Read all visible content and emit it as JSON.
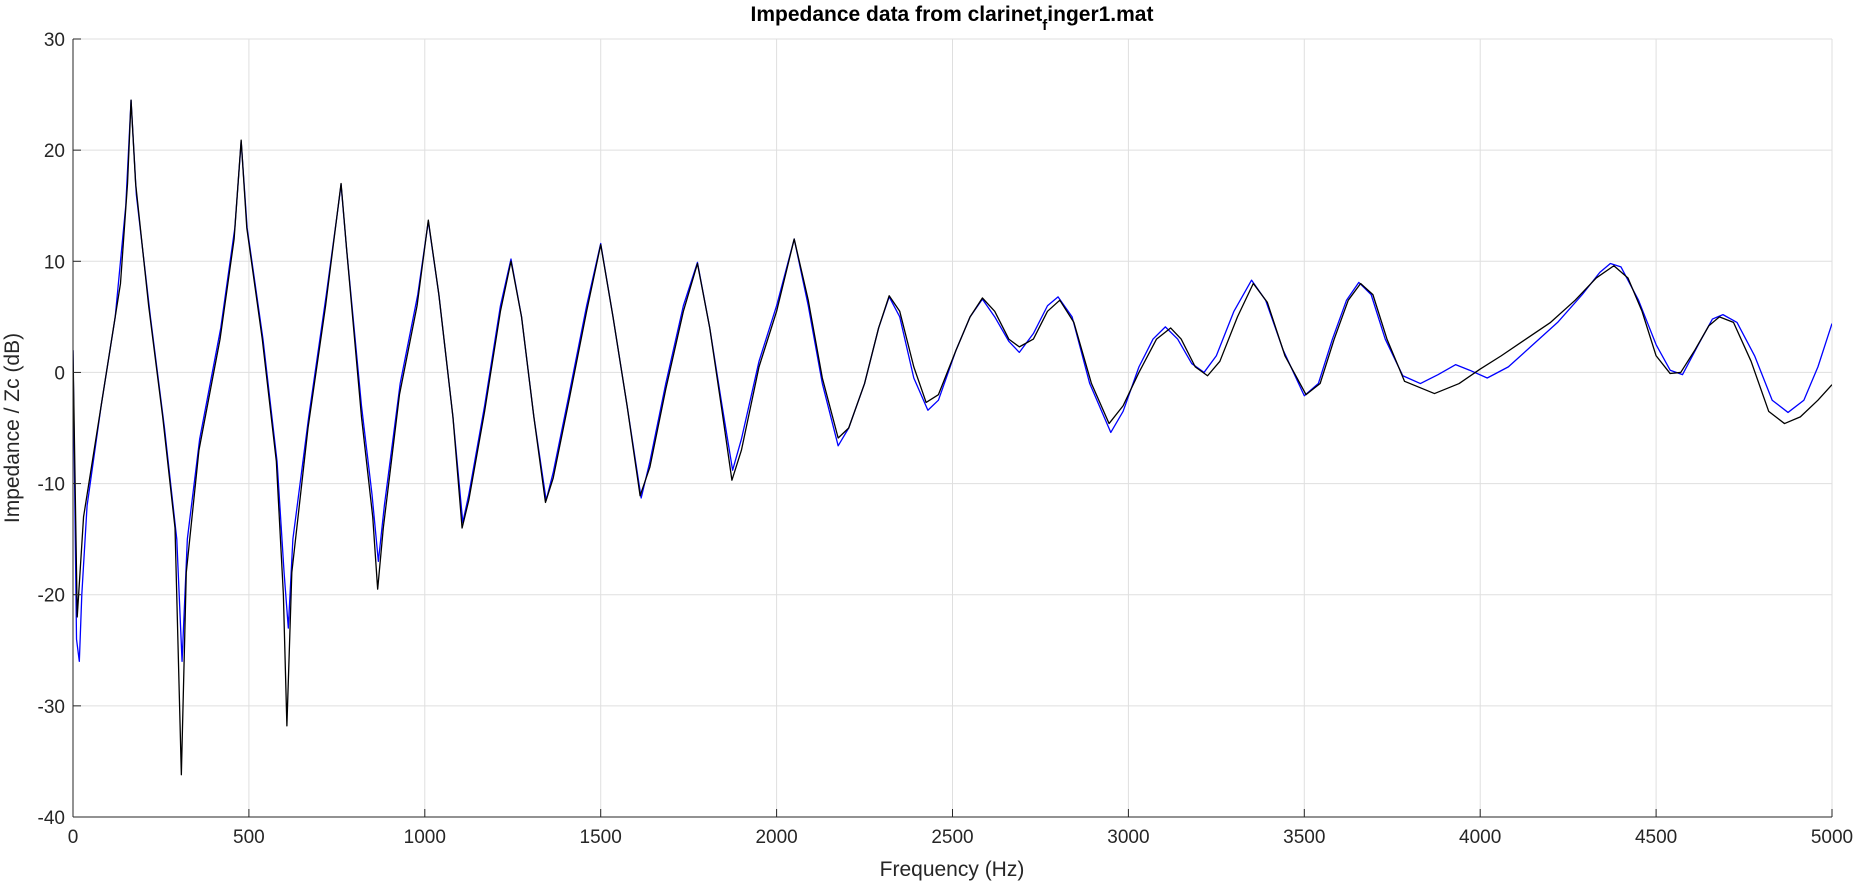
{
  "chart_data": {
    "type": "line",
    "title": "Impedance data from clarinet",
    "title_subscript": "f",
    "title_suffix": "inger1.mat",
    "xlabel": "Frequency (Hz)",
    "ylabel": "Impedance / Zc (dB)",
    "xlim": [
      0,
      5000
    ],
    "ylim": [
      -40,
      30
    ],
    "xticks": [
      0,
      500,
      1000,
      1500,
      2000,
      2500,
      3000,
      3500,
      4000,
      4500,
      5000
    ],
    "yticks": [
      -40,
      -30,
      -20,
      -10,
      0,
      10,
      20,
      30
    ],
    "xtick_labels": [
      "0",
      "500",
      "1000",
      "1500",
      "2000",
      "2500",
      "3000",
      "3500",
      "4000",
      "4500",
      "5000"
    ],
    "ytick_labels": [
      "-40",
      "-30",
      "-20",
      "-10",
      "0",
      "10",
      "20",
      "30"
    ],
    "grid": true,
    "series": [
      {
        "color": "#0000ff",
        "points": [
          [
            0,
            2
          ],
          [
            10,
            -24
          ],
          [
            18,
            -26
          ],
          [
            25,
            -20
          ],
          [
            40,
            -12
          ],
          [
            80,
            -3
          ],
          [
            120,
            5
          ],
          [
            150,
            15
          ],
          [
            165,
            24.5
          ],
          [
            180,
            16
          ],
          [
            220,
            5
          ],
          [
            260,
            -5
          ],
          [
            295,
            -15
          ],
          [
            310,
            -26
          ],
          [
            325,
            -15
          ],
          [
            360,
            -6
          ],
          [
            420,
            4
          ],
          [
            460,
            13
          ],
          [
            478,
            20.8
          ],
          [
            495,
            13
          ],
          [
            540,
            3
          ],
          [
            580,
            -8
          ],
          [
            600,
            -18
          ],
          [
            612,
            -23
          ],
          [
            625,
            -15
          ],
          [
            670,
            -4
          ],
          [
            720,
            7
          ],
          [
            750,
            14
          ],
          [
            762,
            16.9
          ],
          [
            778,
            11
          ],
          [
            820,
            -3
          ],
          [
            850,
            -11
          ],
          [
            868,
            -17
          ],
          [
            885,
            -12
          ],
          [
            930,
            -1
          ],
          [
            980,
            7
          ],
          [
            1010,
            13.6
          ],
          [
            1040,
            7
          ],
          [
            1080,
            -4
          ],
          [
            1108,
            -13.5
          ],
          [
            1125,
            -11
          ],
          [
            1170,
            -3
          ],
          [
            1215,
            6
          ],
          [
            1245,
            10.2
          ],
          [
            1275,
            5
          ],
          [
            1310,
            -4
          ],
          [
            1345,
            -11.5
          ],
          [
            1365,
            -9
          ],
          [
            1410,
            -2
          ],
          [
            1460,
            6
          ],
          [
            1500,
            11.6
          ],
          [
            1535,
            5
          ],
          [
            1575,
            -3
          ],
          [
            1615,
            -11.3
          ],
          [
            1640,
            -8
          ],
          [
            1685,
            -1
          ],
          [
            1735,
            6
          ],
          [
            1775,
            9.9
          ],
          [
            1810,
            4
          ],
          [
            1845,
            -3
          ],
          [
            1875,
            -8.8
          ],
          [
            1900,
            -6
          ],
          [
            1950,
            1
          ],
          [
            2000,
            6
          ],
          [
            2050,
            12
          ],
          [
            2090,
            6
          ],
          [
            2130,
            -1
          ],
          [
            2175,
            -6.6
          ],
          [
            2205,
            -5
          ],
          [
            2250,
            -1
          ],
          [
            2290,
            4
          ],
          [
            2320,
            6.8
          ],
          [
            2350,
            5
          ],
          [
            2390,
            -0.5
          ],
          [
            2430,
            -3.4
          ],
          [
            2460,
            -2.5
          ],
          [
            2510,
            2
          ],
          [
            2550,
            5
          ],
          [
            2585,
            6.6
          ],
          [
            2620,
            5
          ],
          [
            2660,
            2.8
          ],
          [
            2690,
            1.8
          ],
          [
            2730,
            3.5
          ],
          [
            2770,
            6
          ],
          [
            2800,
            6.8
          ],
          [
            2840,
            5
          ],
          [
            2890,
            -1
          ],
          [
            2950,
            -5.4
          ],
          [
            2985,
            -3.5
          ],
          [
            3030,
            0.5
          ],
          [
            3070,
            3
          ],
          [
            3105,
            4.1
          ],
          [
            3140,
            3
          ],
          [
            3180,
            0.8
          ],
          [
            3215,
            0
          ],
          [
            3250,
            1.5
          ],
          [
            3300,
            5.5
          ],
          [
            3350,
            8.3
          ],
          [
            3390,
            6.5
          ],
          [
            3440,
            2
          ],
          [
            3500,
            -2.1
          ],
          [
            3540,
            -1
          ],
          [
            3580,
            3
          ],
          [
            3620,
            6.5
          ],
          [
            3655,
            8.1
          ],
          [
            3690,
            7
          ],
          [
            3730,
            3
          ],
          [
            3780,
            -0.3
          ],
          [
            3830,
            -1
          ],
          [
            3880,
            -0.2
          ],
          [
            3930,
            0.7
          ],
          [
            3970,
            0.2
          ],
          [
            4020,
            -0.5
          ],
          [
            4080,
            0.5
          ],
          [
            4150,
            2.5
          ],
          [
            4220,
            4.5
          ],
          [
            4290,
            7
          ],
          [
            4340,
            9
          ],
          [
            4370,
            9.8
          ],
          [
            4400,
            9.5
          ],
          [
            4450,
            6.5
          ],
          [
            4500,
            2.5
          ],
          [
            4540,
            0.2
          ],
          [
            4575,
            -0.2
          ],
          [
            4620,
            2.5
          ],
          [
            4660,
            4.8
          ],
          [
            4690,
            5.2
          ],
          [
            4730,
            4.5
          ],
          [
            4780,
            1.5
          ],
          [
            4830,
            -2.5
          ],
          [
            4875,
            -3.6
          ],
          [
            4920,
            -2.5
          ],
          [
            4960,
            0.5
          ],
          [
            5000,
            4.4
          ]
        ]
      },
      {
        "color": "#000000",
        "points": [
          [
            0,
            2
          ],
          [
            12,
            -22
          ],
          [
            20,
            -18
          ],
          [
            30,
            -13
          ],
          [
            60,
            -7
          ],
          [
            100,
            1
          ],
          [
            135,
            8
          ],
          [
            155,
            17
          ],
          [
            165,
            24.5
          ],
          [
            178,
            17
          ],
          [
            215,
            6
          ],
          [
            255,
            -4
          ],
          [
            290,
            -14
          ],
          [
            308,
            -36.2
          ],
          [
            322,
            -18
          ],
          [
            358,
            -7
          ],
          [
            418,
            3
          ],
          [
            458,
            12
          ],
          [
            478,
            20.9
          ],
          [
            494,
            13
          ],
          [
            538,
            3
          ],
          [
            578,
            -8
          ],
          [
            598,
            -20
          ],
          [
            608,
            -31.8
          ],
          [
            622,
            -18
          ],
          [
            668,
            -5
          ],
          [
            718,
            6
          ],
          [
            750,
            14
          ],
          [
            762,
            17
          ],
          [
            778,
            11
          ],
          [
            820,
            -4
          ],
          [
            852,
            -13
          ],
          [
            866,
            -19.5
          ],
          [
            882,
            -14
          ],
          [
            928,
            -2
          ],
          [
            978,
            6
          ],
          [
            1010,
            13.7
          ],
          [
            1040,
            7
          ],
          [
            1080,
            -4
          ],
          [
            1106,
            -14
          ],
          [
            1125,
            -11.5
          ],
          [
            1170,
            -3.5
          ],
          [
            1215,
            5.5
          ],
          [
            1245,
            10
          ],
          [
            1275,
            5
          ],
          [
            1310,
            -4
          ],
          [
            1343,
            -11.7
          ],
          [
            1365,
            -9.5
          ],
          [
            1410,
            -2.5
          ],
          [
            1460,
            5.5
          ],
          [
            1500,
            11.5
          ],
          [
            1535,
            5
          ],
          [
            1575,
            -3
          ],
          [
            1612,
            -11.1
          ],
          [
            1640,
            -8.5
          ],
          [
            1685,
            -1.5
          ],
          [
            1735,
            5.5
          ],
          [
            1775,
            9.8
          ],
          [
            1810,
            4
          ],
          [
            1845,
            -3.5
          ],
          [
            1873,
            -9.7
          ],
          [
            1900,
            -7
          ],
          [
            1950,
            0.5
          ],
          [
            2000,
            5.5
          ],
          [
            2050,
            12
          ],
          [
            2090,
            6.5
          ],
          [
            2130,
            -0.5
          ],
          [
            2175,
            -5.9
          ],
          [
            2205,
            -5
          ],
          [
            2250,
            -1
          ],
          [
            2290,
            4
          ],
          [
            2320,
            6.9
          ],
          [
            2350,
            5.5
          ],
          [
            2390,
            0.5
          ],
          [
            2425,
            -2.7
          ],
          [
            2460,
            -2
          ],
          [
            2510,
            2
          ],
          [
            2550,
            5
          ],
          [
            2585,
            6.7
          ],
          [
            2620,
            5.5
          ],
          [
            2660,
            3
          ],
          [
            2690,
            2.3
          ],
          [
            2730,
            3
          ],
          [
            2770,
            5.5
          ],
          [
            2805,
            6.5
          ],
          [
            2845,
            4.5
          ],
          [
            2895,
            -1
          ],
          [
            2945,
            -4.6
          ],
          [
            2985,
            -3
          ],
          [
            3030,
            0
          ],
          [
            3080,
            3
          ],
          [
            3120,
            4
          ],
          [
            3150,
            3
          ],
          [
            3190,
            0.5
          ],
          [
            3225,
            -0.3
          ],
          [
            3260,
            1
          ],
          [
            3310,
            5
          ],
          [
            3355,
            8
          ],
          [
            3395,
            6.3
          ],
          [
            3445,
            1.5
          ],
          [
            3505,
            -2
          ],
          [
            3545,
            -1
          ],
          [
            3585,
            3
          ],
          [
            3625,
            6.5
          ],
          [
            3660,
            8
          ],
          [
            3695,
            7
          ],
          [
            3735,
            3
          ],
          [
            3785,
            -0.8
          ],
          [
            3870,
            -1.9
          ],
          [
            3940,
            -1
          ],
          [
            4000,
            0.3
          ],
          [
            4060,
            1.5
          ],
          [
            4130,
            3
          ],
          [
            4200,
            4.5
          ],
          [
            4270,
            6.5
          ],
          [
            4330,
            8.5
          ],
          [
            4380,
            9.6
          ],
          [
            4420,
            8.5
          ],
          [
            4460,
            5.5
          ],
          [
            4500,
            1.5
          ],
          [
            4540,
            -0.1
          ],
          [
            4570,
            0
          ],
          [
            4610,
            2
          ],
          [
            4650,
            4.2
          ],
          [
            4680,
            5
          ],
          [
            4720,
            4.5
          ],
          [
            4770,
            1
          ],
          [
            4820,
            -3.5
          ],
          [
            4865,
            -4.6
          ],
          [
            4910,
            -4
          ],
          [
            4960,
            -2.5
          ],
          [
            5000,
            -1.1
          ]
        ]
      }
    ]
  }
}
